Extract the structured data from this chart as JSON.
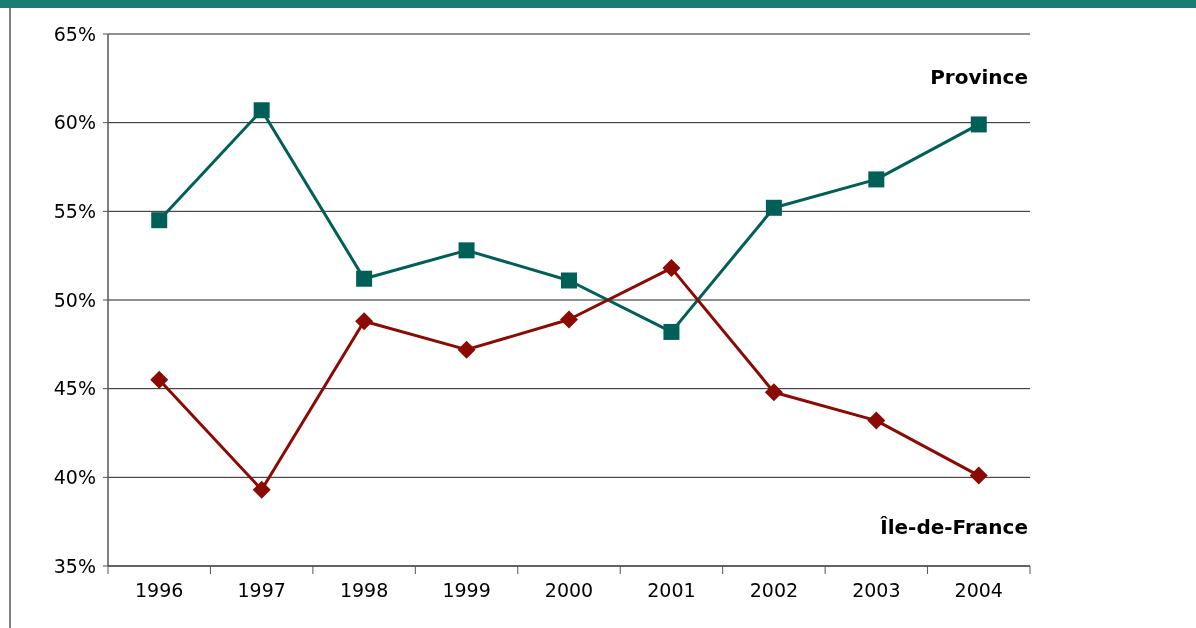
{
  "chart_data": {
    "type": "line",
    "categories": [
      "1996",
      "1997",
      "1998",
      "1999",
      "2000",
      "2001",
      "2002",
      "2003",
      "2004"
    ],
    "series": [
      {
        "name": "Province",
        "color": "#005f56",
        "marker": "square",
        "values": [
          54.5,
          60.7,
          51.2,
          52.8,
          51.1,
          48.2,
          55.2,
          56.8,
          59.9
        ]
      },
      {
        "name": "Île-de-France",
        "color": "#8b0a03",
        "marker": "diamond",
        "values": [
          45.5,
          39.3,
          48.8,
          47.2,
          48.9,
          51.8,
          44.8,
          43.2,
          40.1
        ]
      }
    ],
    "ylim": [
      35,
      65
    ],
    "yticks": [
      {
        "value": 35,
        "label": "35%"
      },
      {
        "value": 40,
        "label": "40%"
      },
      {
        "value": 45,
        "label": "45%"
      },
      {
        "value": 50,
        "label": "50%"
      },
      {
        "value": 55,
        "label": "55%"
      },
      {
        "value": 60,
        "label": "60%"
      },
      {
        "value": 65,
        "label": "65%"
      }
    ],
    "grid": "y",
    "line_style": "solid"
  }
}
